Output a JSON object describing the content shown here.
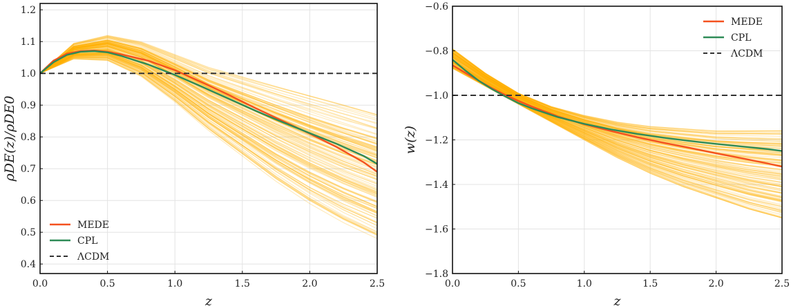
{
  "chart_data": [
    {
      "type": "line",
      "xlabel": "z",
      "ylabel": "ρDE(z)/ρDE0",
      "xlim": [
        0.0,
        2.5
      ],
      "ylim": [
        0.37,
        1.22
      ],
      "xticks": [
        "0.0",
        "0.5",
        "1.0",
        "1.5",
        "2.0",
        "2.5"
      ],
      "yticks": [
        "0.4",
        "0.5",
        "0.6",
        "0.7",
        "0.8",
        "0.9",
        "1.0",
        "1.1",
        "1.2"
      ],
      "grid": true,
      "legend_position": "bottom-left",
      "band": {
        "color": "#FFB000",
        "x": [
          0.0,
          0.25,
          0.5,
          0.75,
          1.0,
          1.25,
          1.5,
          1.75,
          2.0,
          2.25,
          2.5
        ],
        "lower": [
          1.0,
          1.045,
          1.04,
          0.99,
          0.91,
          0.82,
          0.74,
          0.66,
          0.59,
          0.53,
          0.48
        ],
        "upper": [
          1.0,
          1.095,
          1.12,
          1.1,
          1.06,
          1.02,
          0.99,
          0.96,
          0.93,
          0.9,
          0.87
        ]
      },
      "series": [
        {
          "name": "MEDE",
          "color": "#F4511E",
          "style": "solid",
          "x": [
            0.0,
            0.1,
            0.2,
            0.3,
            0.4,
            0.5,
            0.6,
            0.8,
            1.0,
            1.2,
            1.4,
            1.6,
            1.8,
            2.0,
            2.2,
            2.4,
            2.5
          ],
          "y": [
            1.0,
            1.04,
            1.062,
            1.07,
            1.072,
            1.068,
            1.06,
            1.04,
            1.01,
            0.972,
            0.932,
            0.89,
            0.85,
            0.81,
            0.768,
            0.72,
            0.69
          ]
        },
        {
          "name": "CPL",
          "color": "#2E8B57",
          "style": "solid",
          "x": [
            0.0,
            0.1,
            0.2,
            0.3,
            0.4,
            0.5,
            0.6,
            0.8,
            1.0,
            1.2,
            1.4,
            1.6,
            1.8,
            2.0,
            2.2,
            2.4,
            2.5
          ],
          "y": [
            1.0,
            1.035,
            1.058,
            1.068,
            1.07,
            1.066,
            1.055,
            1.028,
            0.995,
            0.958,
            0.92,
            0.882,
            0.846,
            0.812,
            0.778,
            0.74,
            0.715
          ]
        },
        {
          "name": "ΛCDM",
          "color": "#333333",
          "style": "dashed",
          "x": [
            0.0,
            2.5
          ],
          "y": [
            1.0,
            1.0
          ]
        }
      ]
    },
    {
      "type": "line",
      "xlabel": "z",
      "ylabel": "w(z)",
      "xlim": [
        0.0,
        2.5
      ],
      "ylim": [
        -1.8,
        -0.6
      ],
      "xticks": [
        "0.0",
        "0.5",
        "1.0",
        "1.5",
        "2.0",
        "2.5"
      ],
      "yticks": [
        "−0.6",
        "−0.8",
        "−1.0",
        "−1.2",
        "−1.4",
        "−1.6",
        "−1.8"
      ],
      "grid": true,
      "legend_position": "top-right",
      "band": {
        "color": "#FFB000",
        "x": [
          0.0,
          0.25,
          0.5,
          0.75,
          1.0,
          1.25,
          1.5,
          1.75,
          2.0,
          2.25,
          2.5
        ],
        "lower": [
          -0.88,
          -0.96,
          -1.04,
          -1.12,
          -1.2,
          -1.28,
          -1.35,
          -1.41,
          -1.46,
          -1.51,
          -1.55
        ],
        "upper": [
          -0.79,
          -0.9,
          -0.99,
          -1.05,
          -1.09,
          -1.12,
          -1.14,
          -1.15,
          -1.16,
          -1.16,
          -1.16
        ]
      },
      "series": [
        {
          "name": "MEDE",
          "color": "#F4511E",
          "style": "solid",
          "x": [
            0.0,
            0.1,
            0.2,
            0.3,
            0.4,
            0.5,
            0.6,
            0.8,
            1.0,
            1.2,
            1.4,
            1.6,
            1.8,
            2.0,
            2.2,
            2.4,
            2.5
          ],
          "y": [
            -0.865,
            -0.9,
            -0.935,
            -0.968,
            -0.998,
            -1.025,
            -1.05,
            -1.095,
            -1.13,
            -1.16,
            -1.188,
            -1.213,
            -1.236,
            -1.26,
            -1.283,
            -1.307,
            -1.32
          ]
        },
        {
          "name": "CPL",
          "color": "#2E8B57",
          "style": "solid",
          "x": [
            0.0,
            0.1,
            0.2,
            0.3,
            0.4,
            0.5,
            0.6,
            0.8,
            1.0,
            1.2,
            1.4,
            1.6,
            1.8,
            2.0,
            2.2,
            2.4,
            2.5
          ],
          "y": [
            -0.84,
            -0.89,
            -0.935,
            -0.972,
            -1.005,
            -1.035,
            -1.058,
            -1.098,
            -1.128,
            -1.153,
            -1.173,
            -1.19,
            -1.205,
            -1.218,
            -1.23,
            -1.242,
            -1.25
          ]
        },
        {
          "name": "ΛCDM",
          "color": "#333333",
          "style": "dashed",
          "x": [
            0.0,
            2.5
          ],
          "y": [
            -1.0,
            -1.0
          ]
        }
      ]
    }
  ]
}
